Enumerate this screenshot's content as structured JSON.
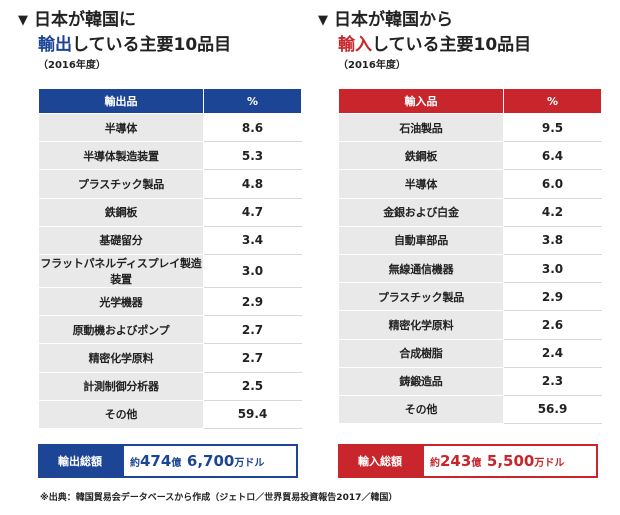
{
  "export": {
    "title_line1": "日本が韓国に",
    "title_line2_highlight": "輸出",
    "title_line2_rest": "している主要10品目",
    "year": "（2016年度）",
    "header_item": "輸出品",
    "header_pct": "%",
    "rows": [
      {
        "item": "半導体",
        "pct": "8.6"
      },
      {
        "item": "半導体製造装置",
        "pct": "5.3"
      },
      {
        "item": "プラスチック製品",
        "pct": "4.8"
      },
      {
        "item": "鉄鋼板",
        "pct": "4.7"
      },
      {
        "item": "基礎留分",
        "pct": "3.4"
      },
      {
        "item": "フラットパネルディスプレイ製造装置",
        "pct": "3.0"
      },
      {
        "item": "光学機器",
        "pct": "2.9"
      },
      {
        "item": "原動機およびポンプ",
        "pct": "2.7"
      },
      {
        "item": "精密化学原料",
        "pct": "2.7"
      },
      {
        "item": "計測制御分析器",
        "pct": "2.5"
      },
      {
        "item": "その他",
        "pct": "59.4"
      }
    ],
    "total_label": "輸出総額",
    "total_prefix": "約",
    "total_num1": "474",
    "total_unit1": "億",
    "total_num2": "6,700",
    "total_unit2": "万ドル"
  },
  "import": {
    "title_line1": "日本が韓国から",
    "title_line2_highlight": "輸入",
    "title_line2_rest": "している主要10品目",
    "year": "（2016年度）",
    "header_item": "輸入品",
    "header_pct": "%",
    "rows": [
      {
        "item": "石油製品",
        "pct": "9.5"
      },
      {
        "item": "鉄鋼板",
        "pct": "6.4"
      },
      {
        "item": "半導体",
        "pct": "6.0"
      },
      {
        "item": "金銀および白金",
        "pct": "4.2"
      },
      {
        "item": "自動車部品",
        "pct": "3.8"
      },
      {
        "item": "無線通信機器",
        "pct": "3.0"
      },
      {
        "item": "プラスチック製品",
        "pct": "2.9"
      },
      {
        "item": "精密化学原料",
        "pct": "2.6"
      },
      {
        "item": "合成樹脂",
        "pct": "2.4"
      },
      {
        "item": "鋳鍛造品",
        "pct": "2.3"
      },
      {
        "item": "その他",
        "pct": "56.9"
      }
    ],
    "total_label": "輸入総額",
    "total_prefix": "約",
    "total_num1": "243",
    "total_unit1": "億",
    "total_num2": "5,500",
    "total_unit2": "万ドル"
  },
  "triangle_glyph": "▼",
  "source": "※出典：韓国貿易会データベースから作成（ジェトロ／世界貿易投資報告2017／韓国）",
  "colors": {
    "export_accent": "#1d4596",
    "import_accent": "#c8262c",
    "cell_gray": "#e9e9e9"
  }
}
